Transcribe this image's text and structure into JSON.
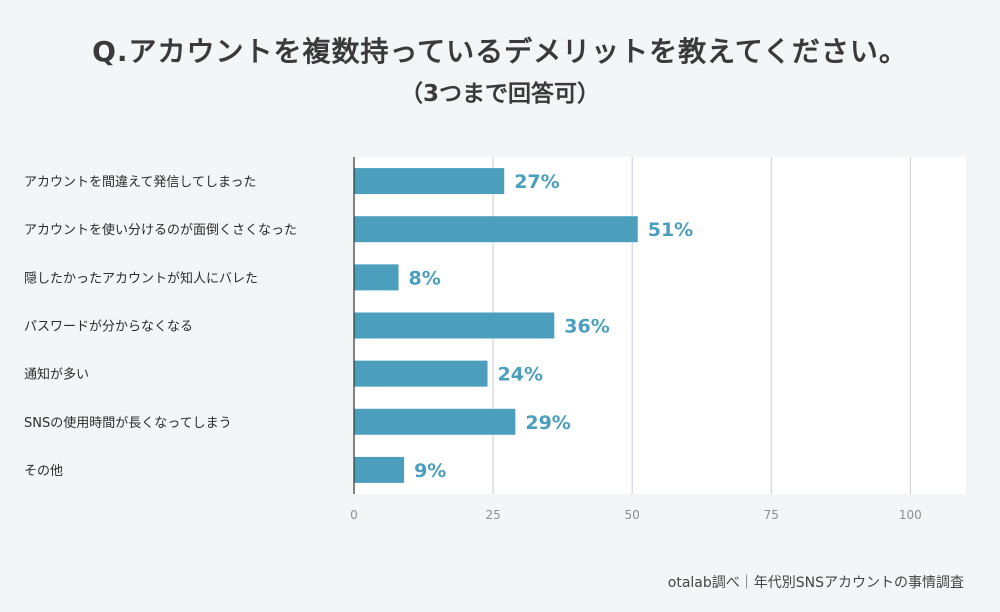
{
  "chart_data": {
    "type": "bar",
    "orientation": "horizontal",
    "title": "Q.アカウントを複数持っているデメリットを教えてください。",
    "subtitle": "（3つまで回答可）",
    "categories": [
      "アカウントを間違えて発信してしまった",
      "アカウントを使い分けるのが面倒くさくなった",
      "隠したかったアカウントが知人にバレた",
      "パスワードが分からなくなる",
      "通知が多い",
      "SNSの使用時間が長くなってしまう",
      "その他"
    ],
    "values": [
      27,
      51,
      8,
      36,
      24,
      29,
      9
    ],
    "value_labels": [
      "27%",
      "51%",
      "8%",
      "36%",
      "24%",
      "29%",
      "9%"
    ],
    "xlim": [
      0,
      110
    ],
    "xticks": [
      0,
      25,
      50,
      75,
      100
    ],
    "xtick_labels": [
      "0",
      "25",
      "50",
      "75",
      "100"
    ],
    "grid": true,
    "bar_color": "#4b9fbd",
    "label_color": "#4b9fbd"
  },
  "source": "otalab調べ｜年代別SNSアカウントの事情調査"
}
